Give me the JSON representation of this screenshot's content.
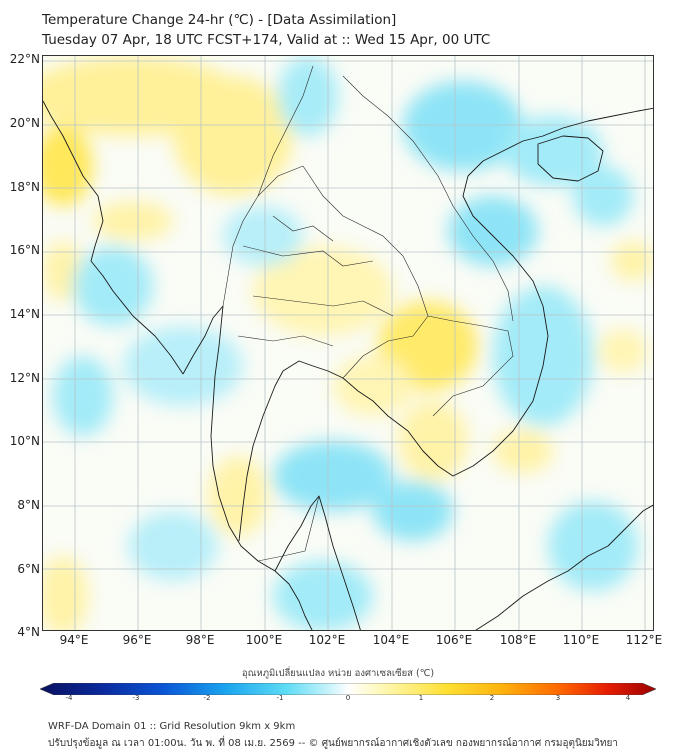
{
  "title": {
    "line1": "Temperature Change 24-hr (℃) - [Data Assimilation]",
    "line2": "Tuesday 07 Apr, 18 UTC FCST+174, Valid at :: Wed 15 Apr, 00 UTC"
  },
  "axes": {
    "lat_labels": [
      "22°N",
      "20°N",
      "18°N",
      "16°N",
      "14°N",
      "12°N",
      "10°N",
      "8°N",
      "6°N",
      "4°N"
    ],
    "lon_labels": [
      "94°E",
      "96°E",
      "98°E",
      "100°E",
      "102°E",
      "104°E",
      "106°E",
      "108°E",
      "110°E",
      "112°E"
    ],
    "lat_values": [
      22,
      20,
      18,
      16,
      14,
      12,
      10,
      8,
      6,
      4
    ],
    "lon_values": [
      94,
      96,
      98,
      100,
      102,
      104,
      106,
      108,
      110,
      112
    ],
    "lat_range": [
      4,
      22.2
    ],
    "lon_range": [
      93,
      112.3
    ]
  },
  "colorbar": {
    "title": "อุณหภูมิเปลี่ยนแปลง หน่วย องศาเซลเซียส (℃)",
    "tick_labels": [
      "-4",
      "-3",
      "-2",
      "-1",
      "0",
      "1",
      "2",
      "3",
      "4"
    ],
    "tick_values": [
      -4,
      -3,
      -2,
      -1,
      0,
      1,
      2,
      3,
      4
    ],
    "range": [
      -4,
      4
    ],
    "colors": [
      "#08105e",
      "#0b2a9c",
      "#0a55d6",
      "#1aa3ee",
      "#5fdcf5",
      "#c9f3fb",
      "#ffffff",
      "#fff7b0",
      "#ffe033",
      "#ffb20f",
      "#ff6a00",
      "#e61e00",
      "#9b0000"
    ]
  },
  "footer": {
    "line1": "WRF-DA Domain 01 :: Grid Resolution 9km x 9km",
    "line2": "ปรับปรุงข้อมูล ณ เวลา 01:00น. วัน พ. ที่ 08 เม.ย. 2569 -- © ศูนย์พยากรณ์อากาศเชิงตัวเลข กองพยากรณ์อากาศ กรมอุตุนิยมวิทยา"
  },
  "colors": {
    "land_border": "#1a1a1a",
    "grid": "#b8c4c8",
    "background": "#fafcf6"
  }
}
